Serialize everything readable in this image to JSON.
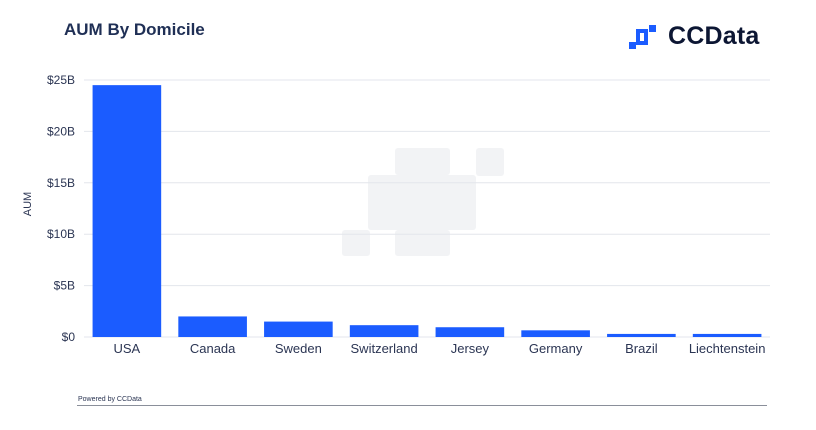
{
  "header": {
    "title": "AUM By Domicile",
    "logo_text": "CCData"
  },
  "footer": {
    "powered_by": "Powered by CCData"
  },
  "colors": {
    "bar": "#1b5cff",
    "gridline": "#e3e6ec",
    "watermark": "#f2f3f5"
  },
  "chart_data": {
    "type": "bar",
    "title": "AUM By Domicile",
    "xlabel": "",
    "ylabel": "AUM",
    "categories": [
      "USA",
      "Canada",
      "Sweden",
      "Switzerland",
      "Jersey",
      "Germany",
      "Brazil",
      "Liechtenstein"
    ],
    "values": [
      24.5,
      2.0,
      1.5,
      1.15,
      0.95,
      0.65,
      0.3,
      0.3
    ],
    "value_unit": "billion USD",
    "ylim": [
      0,
      25
    ],
    "yticks": [
      0,
      5,
      10,
      15,
      20,
      25
    ],
    "ytick_labels": [
      "$0",
      "$5B",
      "$10B",
      "$15B",
      "$20B",
      "$25B"
    ],
    "grid": true,
    "legend": "none"
  }
}
